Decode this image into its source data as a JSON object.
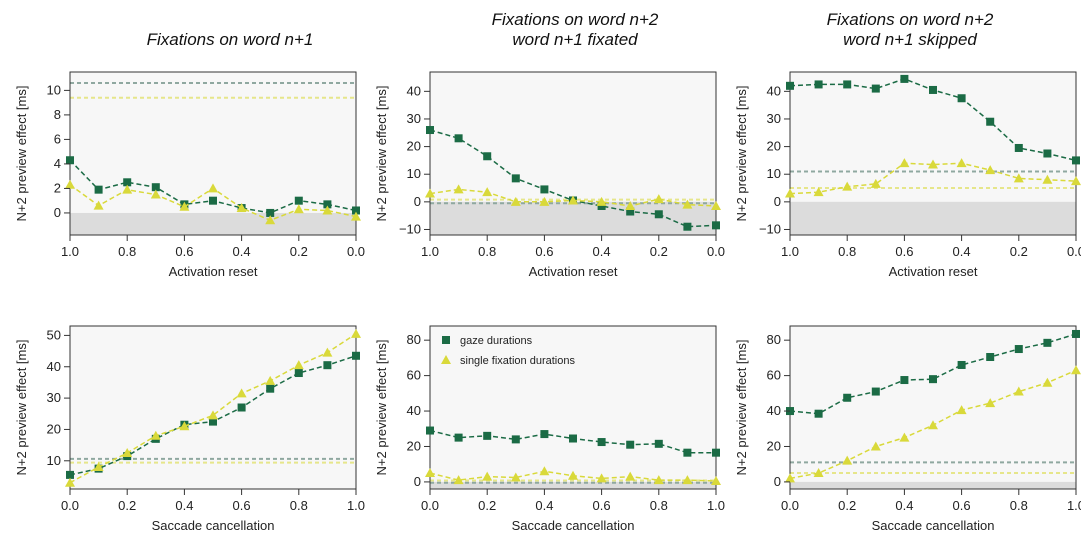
{
  "colors": {
    "gaze": "#1b6b45",
    "single": "#d9d93a",
    "gaze_ref": "#8fa8a0",
    "single_ref": "#e6e68a",
    "negative_band": "#dcdcdc",
    "plot_bg": "#f7f7f7"
  },
  "legend": {
    "gaze": "gaze durations",
    "single": "single fixation durations"
  },
  "chart_data": [
    {
      "type": "line",
      "title_lines": [
        "Fixations on word n+1"
      ],
      "xlabel": "Activation reset",
      "ylabel": "N+2 preview effect [ms]",
      "x_reversed": true,
      "xlim": [
        1.0,
        0.0
      ],
      "ylim": [
        -1.8,
        11.5
      ],
      "xticks": [
        1.0,
        0.8,
        0.6,
        0.4,
        0.2,
        0.0
      ],
      "xtick_labels": [
        "1.0",
        "0.8",
        "0.6",
        "0.4",
        "0.2",
        "0.0"
      ],
      "yticks": [
        0,
        2,
        4,
        6,
        8,
        10
      ],
      "ytick_labels": [
        "0",
        "2",
        "4",
        "6",
        "8",
        "10"
      ],
      "reference_lines": {
        "gaze": 10.6,
        "single": 9.4
      },
      "series": [
        {
          "name": "gaze durations",
          "x": [
            1.0,
            0.9,
            0.8,
            0.7,
            0.6,
            0.5,
            0.4,
            0.3,
            0.2,
            0.1,
            0.0
          ],
          "values": [
            4.3,
            1.9,
            2.5,
            2.1,
            0.7,
            1.0,
            0.4,
            0.0,
            1.0,
            0.7,
            0.2
          ]
        },
        {
          "name": "single fixation durations",
          "x": [
            1.0,
            0.9,
            0.8,
            0.7,
            0.6,
            0.5,
            0.4,
            0.3,
            0.2,
            0.1,
            0.0
          ],
          "values": [
            2.3,
            0.6,
            1.9,
            1.5,
            0.5,
            2.0,
            0.4,
            -0.6,
            0.3,
            0.2,
            -0.3
          ]
        }
      ]
    },
    {
      "type": "line",
      "title_lines": [
        "Fixations on word n+2",
        "word n+1 fixated"
      ],
      "xlabel": "Activation reset",
      "ylabel": "N+2 preview effect [ms]",
      "x_reversed": true,
      "xlim": [
        1.0,
        0.0
      ],
      "ylim": [
        -12,
        47
      ],
      "xticks": [
        1.0,
        0.8,
        0.6,
        0.4,
        0.2,
        0.0
      ],
      "xtick_labels": [
        "1.0",
        "0.8",
        "0.6",
        "0.4",
        "0.2",
        "0.0"
      ],
      "yticks": [
        -10,
        0,
        10,
        20,
        30,
        40
      ],
      "ytick_labels": [
        "−10",
        "0",
        "10",
        "20",
        "30",
        "40"
      ],
      "reference_lines": {
        "gaze": -0.5,
        "single": 0.8
      },
      "series": [
        {
          "name": "gaze durations",
          "x": [
            1.0,
            0.9,
            0.8,
            0.7,
            0.6,
            0.5,
            0.4,
            0.3,
            0.2,
            0.1,
            0.0
          ],
          "values": [
            26,
            23,
            16.5,
            8.5,
            4.5,
            0.5,
            -1.5,
            -3.5,
            -4.5,
            -9,
            -8.5
          ]
        },
        {
          "name": "single fixation durations",
          "x": [
            1.0,
            0.9,
            0.8,
            0.7,
            0.6,
            0.5,
            0.4,
            0.3,
            0.2,
            0.1,
            0.0
          ],
          "values": [
            3,
            4.5,
            3.5,
            0,
            0,
            0.5,
            0,
            -1.5,
            1,
            -1,
            -1.5
          ]
        }
      ]
    },
    {
      "type": "line",
      "title_lines": [
        "Fixations on word n+2",
        "word n+1 skipped"
      ],
      "xlabel": "Activation reset",
      "ylabel": "N+2 preview effect [ms]",
      "x_reversed": true,
      "xlim": [
        1.0,
        0.0
      ],
      "ylim": [
        -12,
        47
      ],
      "xticks": [
        1.0,
        0.8,
        0.6,
        0.4,
        0.2,
        0.0
      ],
      "xtick_labels": [
        "1.0",
        "0.8",
        "0.6",
        "0.4",
        "0.2",
        "0.0"
      ],
      "yticks": [
        -10,
        0,
        10,
        20,
        30,
        40
      ],
      "ytick_labels": [
        "−10",
        "0",
        "10",
        "20",
        "30",
        "40"
      ],
      "reference_lines": {
        "gaze": 11,
        "single": 5
      },
      "series": [
        {
          "name": "gaze durations",
          "x": [
            1.0,
            0.9,
            0.8,
            0.7,
            0.6,
            0.5,
            0.4,
            0.3,
            0.2,
            0.1,
            0.0
          ],
          "values": [
            42,
            42.5,
            42.5,
            41,
            44.5,
            40.5,
            37.5,
            29,
            19.5,
            17.5,
            15
          ]
        },
        {
          "name": "single fixation durations",
          "x": [
            1.0,
            0.9,
            0.8,
            0.7,
            0.6,
            0.5,
            0.4,
            0.3,
            0.2,
            0.1,
            0.0
          ],
          "values": [
            3,
            3.5,
            5.5,
            6.5,
            14,
            13.5,
            14,
            11.5,
            8.5,
            8,
            7.5
          ]
        }
      ]
    },
    {
      "type": "line",
      "title_lines": [],
      "xlabel": "Saccade cancellation",
      "ylabel": "N+2 preview effect [ms]",
      "x_reversed": false,
      "xlim": [
        0.0,
        1.0
      ],
      "ylim": [
        1,
        53
      ],
      "xticks": [
        0.0,
        0.2,
        0.4,
        0.6,
        0.8,
        1.0
      ],
      "xtick_labels": [
        "0.0",
        "0.2",
        "0.4",
        "0.6",
        "0.8",
        "1.0"
      ],
      "yticks": [
        10,
        20,
        30,
        40,
        50
      ],
      "ytick_labels": [
        "10",
        "20",
        "30",
        "40",
        "50"
      ],
      "reference_lines": {
        "gaze": 10.6,
        "single": 9.4
      },
      "series": [
        {
          "name": "gaze durations",
          "x": [
            0.0,
            0.1,
            0.2,
            0.3,
            0.4,
            0.5,
            0.6,
            0.7,
            0.8,
            0.9,
            1.0
          ],
          "values": [
            5.5,
            7.5,
            11.5,
            17,
            21.5,
            22.5,
            27,
            33,
            38,
            40.5,
            43.5
          ]
        },
        {
          "name": "single fixation durations",
          "x": [
            0.0,
            0.1,
            0.2,
            0.3,
            0.4,
            0.5,
            0.6,
            0.7,
            0.8,
            0.9,
            1.0
          ],
          "values": [
            3,
            8,
            12.5,
            18,
            21,
            24.5,
            31.5,
            35.5,
            40.5,
            44.5,
            50.5
          ]
        }
      ]
    },
    {
      "type": "line",
      "title_lines": [],
      "xlabel": "Saccade cancellation",
      "ylabel": "N+2 preview effect [ms]",
      "x_reversed": false,
      "xlim": [
        0.0,
        1.0
      ],
      "ylim": [
        -4,
        88
      ],
      "xticks": [
        0.0,
        0.2,
        0.4,
        0.6,
        0.8,
        1.0
      ],
      "xtick_labels": [
        "0.0",
        "0.2",
        "0.4",
        "0.6",
        "0.8",
        "1.0"
      ],
      "yticks": [
        0,
        20,
        40,
        60,
        80
      ],
      "ytick_labels": [
        "0",
        "20",
        "40",
        "60",
        "80"
      ],
      "reference_lines": {
        "gaze": -0.5,
        "single": 0.8
      },
      "legend_position": "top-left",
      "series": [
        {
          "name": "gaze durations",
          "x": [
            0.0,
            0.1,
            0.2,
            0.3,
            0.4,
            0.5,
            0.6,
            0.7,
            0.8,
            0.9,
            1.0
          ],
          "values": [
            29,
            25,
            26,
            24,
            27,
            24.5,
            22.5,
            21,
            21.5,
            16.5,
            16.5
          ]
        },
        {
          "name": "single fixation durations",
          "x": [
            0.0,
            0.1,
            0.2,
            0.3,
            0.4,
            0.5,
            0.6,
            0.7,
            0.8,
            0.9,
            1.0
          ],
          "values": [
            5,
            1,
            3,
            2.5,
            6,
            3.5,
            2,
            3,
            1,
            1,
            0.5
          ]
        }
      ]
    },
    {
      "type": "line",
      "title_lines": [],
      "xlabel": "Saccade cancellation",
      "ylabel": "N+2 preview effect [ms]",
      "x_reversed": false,
      "xlim": [
        0.0,
        1.0
      ],
      "ylim": [
        -4,
        88
      ],
      "xticks": [
        0.0,
        0.2,
        0.4,
        0.6,
        0.8,
        1.0
      ],
      "xtick_labels": [
        "0.0",
        "0.2",
        "0.4",
        "0.6",
        "0.8",
        "1.0"
      ],
      "yticks": [
        0,
        20,
        40,
        60,
        80
      ],
      "ytick_labels": [
        "0",
        "20",
        "40",
        "60",
        "80"
      ],
      "reference_lines": {
        "gaze": 11,
        "single": 5
      },
      "series": [
        {
          "name": "gaze durations",
          "x": [
            0.0,
            0.1,
            0.2,
            0.3,
            0.4,
            0.5,
            0.6,
            0.7,
            0.8,
            0.9,
            1.0
          ],
          "values": [
            40,
            38.5,
            47.5,
            51,
            57.5,
            58,
            66,
            70.5,
            75,
            78.5,
            83.5
          ]
        },
        {
          "name": "single fixation durations",
          "x": [
            0.0,
            0.1,
            0.2,
            0.3,
            0.4,
            0.5,
            0.6,
            0.7,
            0.8,
            0.9,
            1.0
          ],
          "values": [
            2,
            5,
            12,
            20,
            25,
            32,
            40.5,
            44.5,
            51,
            56,
            63
          ]
        }
      ]
    }
  ]
}
